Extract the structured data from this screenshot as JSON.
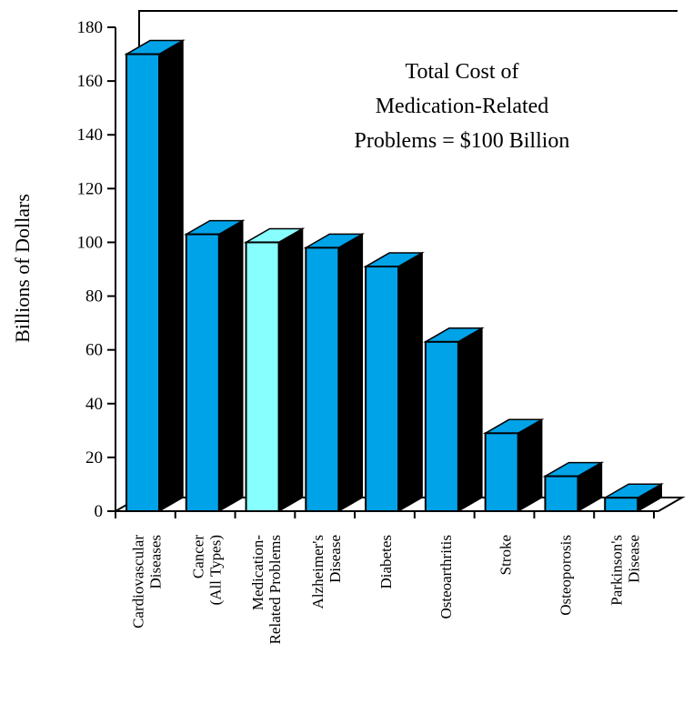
{
  "chart_data": {
    "type": "bar",
    "title": "",
    "annotation": [
      "Total Cost of",
      "Medication-Related",
      "Problems = $100 Billion"
    ],
    "xlabel": "",
    "ylabel": "Billions of Dollars",
    "ylim": [
      0,
      180
    ],
    "yticks": [
      "0",
      "20",
      "40",
      "60",
      "80",
      "100",
      "120",
      "140",
      "160",
      "180"
    ],
    "categories": [
      [
        "Cardiovascular",
        "Diseases"
      ],
      [
        "Cancer",
        "(All Types)"
      ],
      [
        "Medication-",
        "Related Problems"
      ],
      [
        "Alzheimer's",
        "Disease"
      ],
      [
        "Diabetes"
      ],
      [
        "Osteoarthritis"
      ],
      [
        "Stroke"
      ],
      [
        "Osteoporosis"
      ],
      [
        "Parkinson's",
        "Disease"
      ]
    ],
    "values": [
      170,
      103,
      100,
      98,
      91,
      63,
      29,
      13,
      5
    ],
    "highlight_index": 2,
    "grid": false,
    "legend": "none",
    "colors": {
      "bar": "#00a3e8",
      "bar_top": "#00a3e8",
      "bar_highlight": "#88ffff",
      "bar_side": "#000000",
      "outline": "#000000"
    }
  }
}
